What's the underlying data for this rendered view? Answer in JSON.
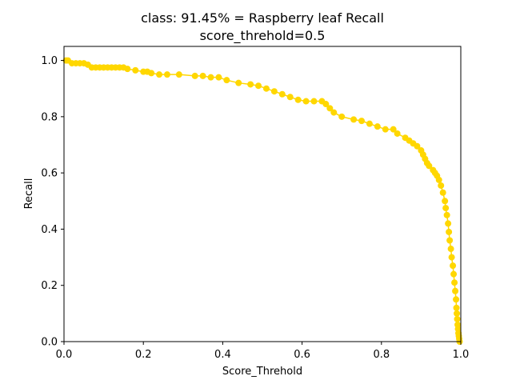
{
  "chart_data": {
    "type": "line",
    "title_line1": "class: 91.45% = Raspberry leaf Recall",
    "title_line2": "score_threhold=0.5",
    "xlabel": "Score_Threhold",
    "ylabel": "Recall",
    "xlim": [
      0.0,
      1.0
    ],
    "ylim": [
      0.0,
      1.05
    ],
    "xticks": [
      "0.0",
      "0.2",
      "0.4",
      "0.6",
      "0.8",
      "1.0"
    ],
    "yticks": [
      "0.0",
      "0.2",
      "0.4",
      "0.6",
      "0.8",
      "1.0"
    ],
    "grid": false,
    "legend": "none",
    "series_color": "#FFD700",
    "x": [
      0.005,
      0.01,
      0.02,
      0.03,
      0.04,
      0.05,
      0.06,
      0.07,
      0.08,
      0.09,
      0.1,
      0.11,
      0.12,
      0.13,
      0.14,
      0.15,
      0.16,
      0.18,
      0.2,
      0.21,
      0.22,
      0.24,
      0.26,
      0.29,
      0.33,
      0.35,
      0.37,
      0.39,
      0.41,
      0.44,
      0.47,
      0.49,
      0.51,
      0.53,
      0.55,
      0.57,
      0.59,
      0.61,
      0.63,
      0.65,
      0.66,
      0.67,
      0.68,
      0.7,
      0.73,
      0.75,
      0.77,
      0.79,
      0.81,
      0.83,
      0.84,
      0.86,
      0.87,
      0.88,
      0.89,
      0.9,
      0.905,
      0.91,
      0.915,
      0.92,
      0.93,
      0.935,
      0.94,
      0.945,
      0.95,
      0.955,
      0.96,
      0.962,
      0.965,
      0.968,
      0.97,
      0.972,
      0.975,
      0.977,
      0.98,
      0.982,
      0.984,
      0.986,
      0.988,
      0.989,
      0.99,
      0.991,
      0.992,
      0.993,
      0.994,
      0.995,
      0.996,
      0.997
    ],
    "y": [
      1.0,
      1.0,
      0.99,
      0.99,
      0.99,
      0.99,
      0.985,
      0.975,
      0.975,
      0.975,
      0.975,
      0.975,
      0.975,
      0.975,
      0.975,
      0.975,
      0.97,
      0.965,
      0.96,
      0.96,
      0.955,
      0.95,
      0.95,
      0.95,
      0.945,
      0.945,
      0.94,
      0.94,
      0.93,
      0.92,
      0.915,
      0.91,
      0.9,
      0.89,
      0.88,
      0.87,
      0.86,
      0.855,
      0.855,
      0.855,
      0.845,
      0.83,
      0.815,
      0.8,
      0.79,
      0.785,
      0.775,
      0.765,
      0.755,
      0.755,
      0.74,
      0.725,
      0.715,
      0.705,
      0.695,
      0.68,
      0.665,
      0.65,
      0.635,
      0.625,
      0.61,
      0.6,
      0.59,
      0.575,
      0.555,
      0.53,
      0.5,
      0.475,
      0.45,
      0.42,
      0.39,
      0.36,
      0.33,
      0.3,
      0.27,
      0.24,
      0.21,
      0.18,
      0.15,
      0.12,
      0.1,
      0.08,
      0.06,
      0.045,
      0.03,
      0.02,
      0.01,
      0.0
    ]
  }
}
